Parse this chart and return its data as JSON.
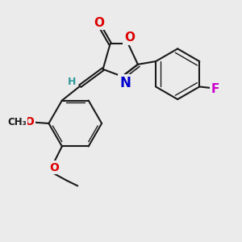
{
  "bg_color": "#ebebeb",
  "bond_color": "#1a1a1a",
  "bond_width": 1.5,
  "atom_colors": {
    "O": "#dd0000",
    "N": "#0000cc",
    "F": "#cc00cc",
    "H": "#339999"
  },
  "figsize": [
    3.0,
    3.0
  ],
  "dpi": 100,
  "scale": 1.0
}
